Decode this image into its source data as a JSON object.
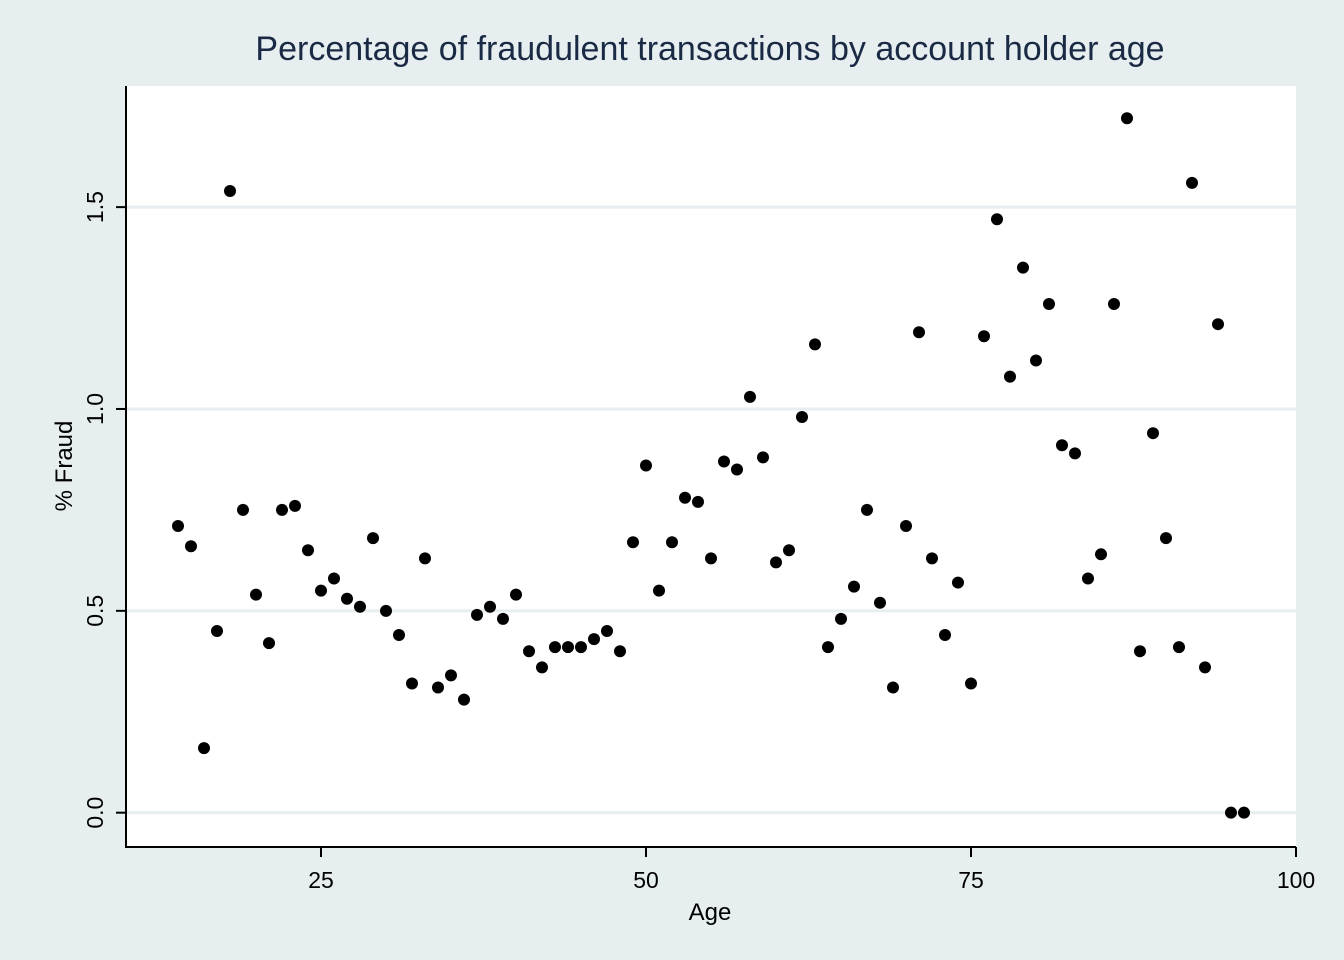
{
  "chart_data": {
    "type": "scatter",
    "title": "Percentage of fraudulent transactions by account holder age",
    "xlabel": "Age",
    "ylabel": "% Fraud",
    "xlim": [
      10,
      100
    ],
    "ylim": [
      -0.085,
      1.8
    ],
    "xticks": [
      25,
      50,
      75,
      100
    ],
    "yticks": [
      0.0,
      0.5,
      1.0,
      1.5
    ],
    "xtick_labels": [
      "25",
      "50",
      "75",
      "100"
    ],
    "ytick_labels": [
      "0.0",
      "0.5",
      "1.0",
      "1.5"
    ],
    "grid": "horizontal",
    "colors": {
      "background": "#e6eef0",
      "plot_area": "#ffffff",
      "grid": "#e6eef0",
      "marker": "#000000",
      "title": "#1a2a44"
    },
    "points": [
      {
        "x": 14,
        "y": 0.71
      },
      {
        "x": 15,
        "y": 0.66
      },
      {
        "x": 16,
        "y": 0.16
      },
      {
        "x": 17,
        "y": 0.45
      },
      {
        "x": 18,
        "y": 1.54
      },
      {
        "x": 19,
        "y": 0.75
      },
      {
        "x": 20,
        "y": 0.54
      },
      {
        "x": 21,
        "y": 0.42
      },
      {
        "x": 22,
        "y": 0.75
      },
      {
        "x": 23,
        "y": 0.76
      },
      {
        "x": 24,
        "y": 0.65
      },
      {
        "x": 25,
        "y": 0.55
      },
      {
        "x": 26,
        "y": 0.58
      },
      {
        "x": 27,
        "y": 0.53
      },
      {
        "x": 28,
        "y": 0.51
      },
      {
        "x": 29,
        "y": 0.68
      },
      {
        "x": 30,
        "y": 0.5
      },
      {
        "x": 31,
        "y": 0.44
      },
      {
        "x": 32,
        "y": 0.32
      },
      {
        "x": 33,
        "y": 0.63
      },
      {
        "x": 34,
        "y": 0.31
      },
      {
        "x": 35,
        "y": 0.34
      },
      {
        "x": 36,
        "y": 0.28
      },
      {
        "x": 37,
        "y": 0.49
      },
      {
        "x": 38,
        "y": 0.51
      },
      {
        "x": 39,
        "y": 0.48
      },
      {
        "x": 40,
        "y": 0.54
      },
      {
        "x": 41,
        "y": 0.4
      },
      {
        "x": 42,
        "y": 0.36
      },
      {
        "x": 43,
        "y": 0.41
      },
      {
        "x": 44,
        "y": 0.41
      },
      {
        "x": 45,
        "y": 0.41
      },
      {
        "x": 46,
        "y": 0.43
      },
      {
        "x": 47,
        "y": 0.45
      },
      {
        "x": 48,
        "y": 0.4
      },
      {
        "x": 49,
        "y": 0.67
      },
      {
        "x": 50,
        "y": 0.86
      },
      {
        "x": 51,
        "y": 0.55
      },
      {
        "x": 52,
        "y": 0.67
      },
      {
        "x": 53,
        "y": 0.78
      },
      {
        "x": 54,
        "y": 0.77
      },
      {
        "x": 55,
        "y": 0.63
      },
      {
        "x": 56,
        "y": 0.87
      },
      {
        "x": 57,
        "y": 0.85
      },
      {
        "x": 58,
        "y": 1.03
      },
      {
        "x": 59,
        "y": 0.88
      },
      {
        "x": 60,
        "y": 0.62
      },
      {
        "x": 61,
        "y": 0.65
      },
      {
        "x": 62,
        "y": 0.98
      },
      {
        "x": 63,
        "y": 1.16
      },
      {
        "x": 64,
        "y": 0.41
      },
      {
        "x": 65,
        "y": 0.48
      },
      {
        "x": 66,
        "y": 0.56
      },
      {
        "x": 67,
        "y": 0.75
      },
      {
        "x": 68,
        "y": 0.52
      },
      {
        "x": 69,
        "y": 0.31
      },
      {
        "x": 70,
        "y": 0.71
      },
      {
        "x": 71,
        "y": 1.19
      },
      {
        "x": 72,
        "y": 0.63
      },
      {
        "x": 73,
        "y": 0.44
      },
      {
        "x": 74,
        "y": 0.57
      },
      {
        "x": 75,
        "y": 0.32
      },
      {
        "x": 76,
        "y": 1.18
      },
      {
        "x": 77,
        "y": 1.47
      },
      {
        "x": 78,
        "y": 1.08
      },
      {
        "x": 79,
        "y": 1.35
      },
      {
        "x": 80,
        "y": 1.12
      },
      {
        "x": 81,
        "y": 1.26
      },
      {
        "x": 82,
        "y": 0.91
      },
      {
        "x": 83,
        "y": 0.89
      },
      {
        "x": 84,
        "y": 0.58
      },
      {
        "x": 85,
        "y": 0.64
      },
      {
        "x": 86,
        "y": 1.26
      },
      {
        "x": 87,
        "y": 1.72
      },
      {
        "x": 88,
        "y": 0.4
      },
      {
        "x": 89,
        "y": 0.94
      },
      {
        "x": 90,
        "y": 0.68
      },
      {
        "x": 91,
        "y": 0.41
      },
      {
        "x": 92,
        "y": 1.56
      },
      {
        "x": 93,
        "y": 0.36
      },
      {
        "x": 94,
        "y": 1.21
      },
      {
        "x": 95,
        "y": 0.0
      },
      {
        "x": 96,
        "y": 0.0
      }
    ]
  }
}
